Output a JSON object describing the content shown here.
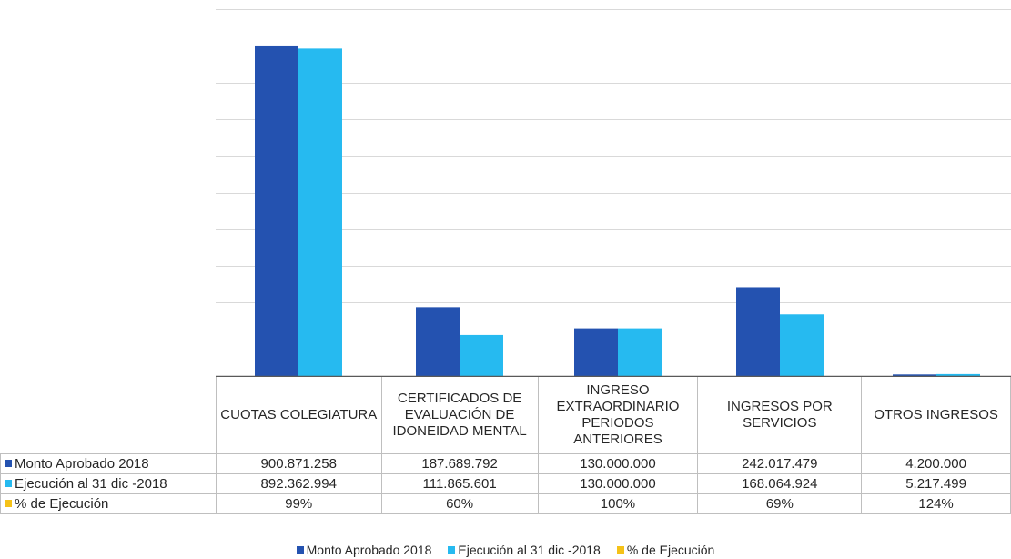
{
  "chart_data": {
    "type": "bar",
    "title": "",
    "xlabel": "",
    "ylabel": "",
    "ylim": [
      0,
      1000000000
    ],
    "gridlines": 10,
    "grid": true,
    "legend_position": "bottom",
    "categories": [
      "CUOTAS COLEGIATURA",
      "CERTIFICADOS DE EVALUACIÓN DE IDONEIDAD MENTAL",
      "INGRESO EXTRAORDINARIO PERIODOS ANTERIORES",
      "INGRESOS POR SERVICIOS",
      "OTROS INGRESOS"
    ],
    "series": [
      {
        "name": "Monto Aprobado 2018",
        "color": "#2452b0",
        "values": [
          900871258,
          187689792,
          130000000,
          242017479,
          4200000
        ],
        "labels": [
          "900.871.258",
          "187.689.792",
          "130.000.000",
          "242.017.479",
          "4.200.000"
        ]
      },
      {
        "name": "Ejecución al 31 dic -2018",
        "color": "#26baf0",
        "values": [
          892362994,
          111865601,
          130000000,
          168064924,
          5217499
        ],
        "labels": [
          "892.362.994",
          "111.865.601",
          "130.000.000",
          "168.064.924",
          "5.217.499"
        ]
      },
      {
        "name": "% de Ejecución",
        "color": "#f5c218",
        "values": [
          99,
          60,
          100,
          69,
          124
        ],
        "labels": [
          "99%",
          "60%",
          "100%",
          "69%",
          "124%"
        ]
      }
    ]
  }
}
